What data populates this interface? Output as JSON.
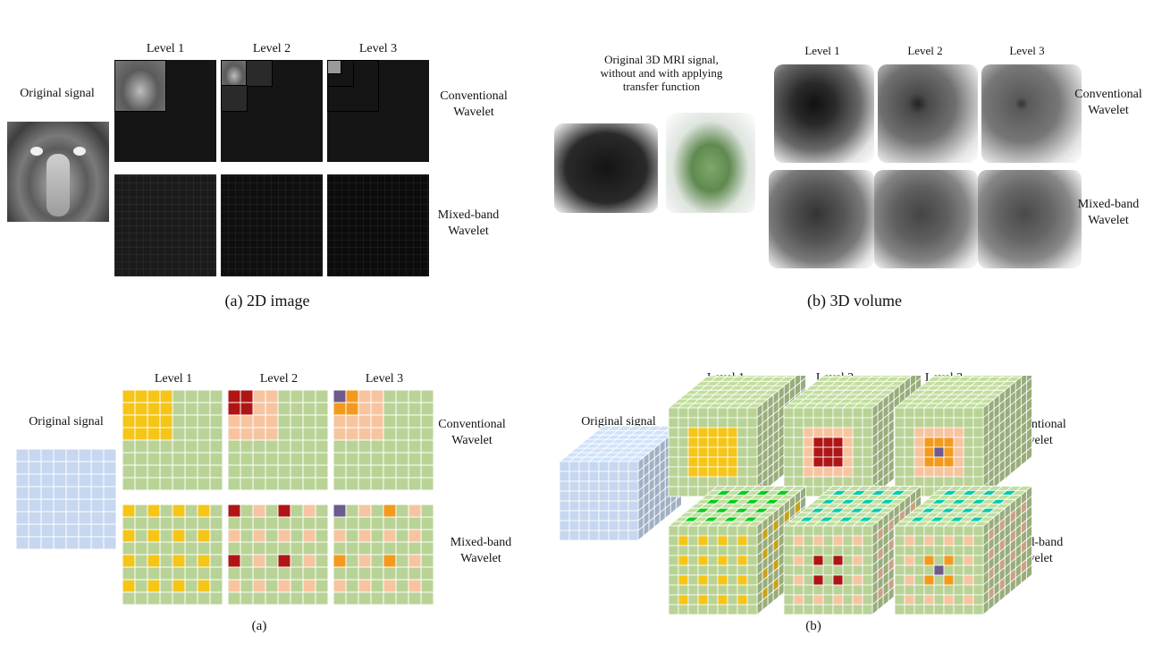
{
  "top_left": {
    "levels": [
      "Level 1",
      "Level 2",
      "Level 3"
    ],
    "original_label": "Original signal",
    "row1_label": [
      "Conventional",
      "Wavelet"
    ],
    "row2_label": [
      "Mixed-band",
      "Wavelet"
    ],
    "caption": "(a) 2D image"
  },
  "top_right": {
    "original_label": [
      "Original 3D MRI signal,",
      "without and with applying",
      "transfer function"
    ],
    "levels": [
      "Level 1",
      "Level 2",
      "Level 3"
    ],
    "row1_label": [
      "Conventional",
      "Wavelet"
    ],
    "row2_label": [
      "Mixed-band",
      "Wavelet"
    ],
    "caption": "(b) 3D volume"
  },
  "bottom_left": {
    "levels": [
      "Level 1",
      "Level 2",
      "Level 3"
    ],
    "original_label": "Original signal",
    "row1_label": [
      "Conventional",
      "Wavelet"
    ],
    "row2_label": [
      "Mixed-band",
      "Wavelet"
    ],
    "caption": "(a)"
  },
  "bottom_right": {
    "levels": [
      "Level 1",
      "Level 2",
      "Level 3"
    ],
    "original_label": "Original signal",
    "row1_label": [
      "Conventional",
      "Wavelet"
    ],
    "row2_label": [
      "Mixed-band",
      "Wavelet"
    ],
    "caption": "(b)"
  },
  "colors": {
    "green": "#b9d396",
    "grid_line": "#ffffff",
    "yellow": "#f5c518",
    "red": "#b01515",
    "peach": "#f7c4a0",
    "orange": "#f39a1e",
    "purple": "#6c5b8c",
    "blue": "#c6d7ef"
  }
}
